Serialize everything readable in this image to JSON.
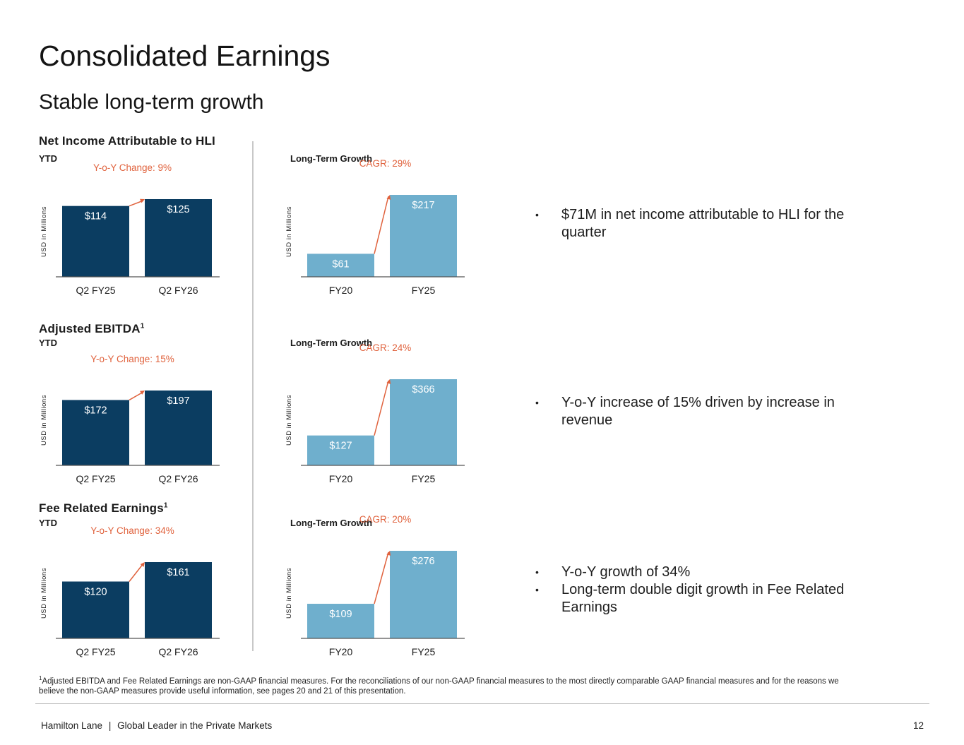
{
  "page": {
    "title": "Consolidated Earnings",
    "subtitle": "Stable long-term growth"
  },
  "colors": {
    "dark_bar": "#0b3d61",
    "light_bar": "#6fafcd",
    "accent": "#e0623d",
    "axis": "#555555"
  },
  "sections": [
    {
      "title": "Net Income Attributable to HLI",
      "footnote_mark": "",
      "period_label": "YTD",
      "yoy_label": "Y-o-Y Change: 9%",
      "long_term_label": "Long-Term Growth",
      "cagr_label": "CAGR: 29%",
      "bullets": [
        "$71M in net income attributable to HLI for the quarter"
      ]
    },
    {
      "title": "Adjusted EBITDA",
      "footnote_mark": "1",
      "period_label": "YTD",
      "yoy_label": "Y-o-Y Change: 15%",
      "long_term_label": "Long-Term Growth",
      "cagr_label": "CAGR: 24%",
      "bullets": [
        "Y-o-Y increase of 15% driven by increase in revenue"
      ]
    },
    {
      "title": "Fee Related Earnings",
      "footnote_mark": "1",
      "period_label": "YTD",
      "yoy_label": "Y-o-Y Change: 34%",
      "long_term_label": "Long-Term Growth",
      "cagr_label": "CAGR: 20%",
      "bullets": [
        "Y-o-Y growth of 34%",
        "Long-term double digit growth in Fee Related Earnings"
      ]
    }
  ],
  "chart_data": [
    {
      "id": "ni-ytd",
      "type": "bar",
      "title": "Net Income Attributable to HLI – YTD",
      "ylabel": "USD in Millions",
      "categories": [
        "Q2 FY25",
        "Q2 FY26"
      ],
      "values": [
        114,
        125
      ],
      "value_labels": [
        "$114",
        "$125"
      ],
      "annotation": "Y-o-Y Change: 9%",
      "ylim": [
        0,
        125
      ],
      "style": "dark"
    },
    {
      "id": "ni-lt",
      "type": "bar",
      "title": "Net Income Attributable to HLI – Long-Term Growth",
      "ylabel": "USD in Millions",
      "categories": [
        "FY20",
        "FY25"
      ],
      "values": [
        61,
        217
      ],
      "value_labels": [
        "$61",
        "$217"
      ],
      "annotation": "CAGR: 29%",
      "ylim": [
        0,
        217
      ],
      "style": "light"
    },
    {
      "id": "ebitda-ytd",
      "type": "bar",
      "title": "Adjusted EBITDA – YTD",
      "ylabel": "USD in Millions",
      "categories": [
        "Q2 FY25",
        "Q2 FY26"
      ],
      "values": [
        172,
        197
      ],
      "value_labels": [
        "$172",
        "$197"
      ],
      "annotation": "Y-o-Y Change: 15%",
      "ylim": [
        0,
        197
      ],
      "style": "dark"
    },
    {
      "id": "ebitda-lt",
      "type": "bar",
      "title": "Adjusted EBITDA – Long-Term Growth",
      "ylabel": "USD in Millions",
      "categories": [
        "FY20",
        "FY25"
      ],
      "values": [
        127,
        366
      ],
      "value_labels": [
        "$127",
        "$366"
      ],
      "annotation": "CAGR: 24%",
      "ylim": [
        0,
        366
      ],
      "style": "light"
    },
    {
      "id": "fre-ytd",
      "type": "bar",
      "title": "Fee Related Earnings – YTD",
      "ylabel": "USD in Millions",
      "categories": [
        "Q2 FY25",
        "Q2 FY26"
      ],
      "values": [
        120,
        161
      ],
      "value_labels": [
        "$120",
        "$161"
      ],
      "annotation": "Y-o-Y Change: 34%",
      "ylim": [
        0,
        161
      ],
      "style": "dark"
    },
    {
      "id": "fre-lt",
      "type": "bar",
      "title": "Fee Related Earnings – Long-Term Growth",
      "ylabel": "USD in Millions",
      "categories": [
        "FY20",
        "FY25"
      ],
      "values": [
        109,
        276
      ],
      "value_labels": [
        "$109",
        "$276"
      ],
      "annotation": "CAGR: 20%",
      "ylim": [
        0,
        276
      ],
      "style": "light"
    }
  ],
  "footnote": {
    "mark": "1",
    "text": "Adjusted EBITDA and Fee Related Earnings are non-GAAP financial measures. For the reconciliations of our non-GAAP financial measures to the most directly comparable GAAP financial measures and for the reasons we believe the non-GAAP measures provide useful information, see pages 20 and 21 of this presentation."
  },
  "footer": {
    "company": "Hamilton Lane",
    "separator": "|",
    "tagline": "Global Leader in the Private Markets",
    "page_number": "12"
  }
}
